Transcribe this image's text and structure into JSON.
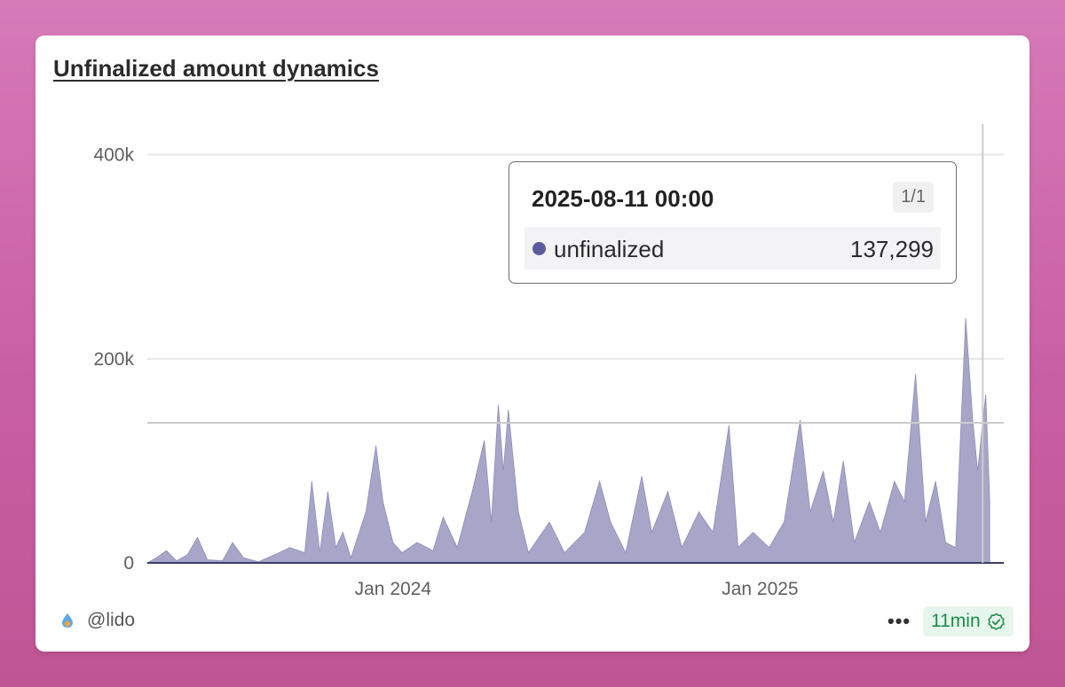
{
  "card": {
    "title": "Unfinalized amount dynamics",
    "author": "@lido",
    "freshness": "11min",
    "more_label": "•••"
  },
  "tooltip": {
    "date": "2025-08-11 00:00",
    "page": "1/1",
    "series_name": "unfinalized",
    "value": "137,299"
  },
  "colors": {
    "area_fill": "#a7a6c8",
    "area_line": "#8d8cbc",
    "series_dot": "#5b5a9e",
    "crosshair": "#cccccc",
    "badge_text": "#1f8a4c"
  },
  "chart_data": {
    "type": "area",
    "title": "Unfinalized amount dynamics",
    "series": [
      {
        "name": "unfinalized"
      }
    ],
    "x_range": [
      "2023-05-01",
      "2025-09-01"
    ],
    "ylim": [
      0,
      430000
    ],
    "y_ticks": [
      0,
      200000,
      400000
    ],
    "y_tick_labels": [
      "0",
      "200k",
      "400k"
    ],
    "x_ticks": [
      "2024-01-01",
      "2025-01-01"
    ],
    "x_tick_labels": [
      "Jan 2024",
      "Jan 2025"
    ],
    "grid": "horizontal",
    "crosshair": {
      "x": "2025-08-11",
      "y": 137299
    },
    "points": [
      [
        "2023-05-01",
        0
      ],
      [
        "2023-05-10",
        5000
      ],
      [
        "2023-05-20",
        12000
      ],
      [
        "2023-05-30",
        2000
      ],
      [
        "2023-06-10",
        8000
      ],
      [
        "2023-06-20",
        25000
      ],
      [
        "2023-06-30",
        3000
      ],
      [
        "2023-07-15",
        2000
      ],
      [
        "2023-07-25",
        20000
      ],
      [
        "2023-08-05",
        5000
      ],
      [
        "2023-08-20",
        1000
      ],
      [
        "2023-09-05",
        8000
      ],
      [
        "2023-09-20",
        15000
      ],
      [
        "2023-10-05",
        10000
      ],
      [
        "2023-10-12",
        80000
      ],
      [
        "2023-10-20",
        10000
      ],
      [
        "2023-10-28",
        70000
      ],
      [
        "2023-11-05",
        15000
      ],
      [
        "2023-11-12",
        30000
      ],
      [
        "2023-11-20",
        5000
      ],
      [
        "2023-12-05",
        50000
      ],
      [
        "2023-12-15",
        115000
      ],
      [
        "2023-12-22",
        60000
      ],
      [
        "2024-01-01",
        20000
      ],
      [
        "2024-01-10",
        10000
      ],
      [
        "2024-01-25",
        20000
      ],
      [
        "2024-02-10",
        12000
      ],
      [
        "2024-02-20",
        45000
      ],
      [
        "2024-03-05",
        15000
      ],
      [
        "2024-03-20",
        70000
      ],
      [
        "2024-04-01",
        120000
      ],
      [
        "2024-04-08",
        40000
      ],
      [
        "2024-04-15",
        155000
      ],
      [
        "2024-04-20",
        90000
      ],
      [
        "2024-04-25",
        150000
      ],
      [
        "2024-05-05",
        50000
      ],
      [
        "2024-05-15",
        10000
      ],
      [
        "2024-06-05",
        40000
      ],
      [
        "2024-06-20",
        10000
      ],
      [
        "2024-07-10",
        30000
      ],
      [
        "2024-07-25",
        80000
      ],
      [
        "2024-08-05",
        40000
      ],
      [
        "2024-08-20",
        10000
      ],
      [
        "2024-09-05",
        85000
      ],
      [
        "2024-09-15",
        30000
      ],
      [
        "2024-10-01",
        70000
      ],
      [
        "2024-10-15",
        15000
      ],
      [
        "2024-11-01",
        50000
      ],
      [
        "2024-11-15",
        30000
      ],
      [
        "2024-12-01",
        135000
      ],
      [
        "2024-12-10",
        15000
      ],
      [
        "2024-12-25",
        30000
      ],
      [
        "2025-01-10",
        15000
      ],
      [
        "2025-01-25",
        40000
      ],
      [
        "2025-02-10",
        140000
      ],
      [
        "2025-02-20",
        50000
      ],
      [
        "2025-03-05",
        90000
      ],
      [
        "2025-03-15",
        40000
      ],
      [
        "2025-03-25",
        100000
      ],
      [
        "2025-04-05",
        20000
      ],
      [
        "2025-04-20",
        60000
      ],
      [
        "2025-05-01",
        30000
      ],
      [
        "2025-05-15",
        80000
      ],
      [
        "2025-05-25",
        60000
      ],
      [
        "2025-06-05",
        185000
      ],
      [
        "2025-06-15",
        40000
      ],
      [
        "2025-06-25",
        80000
      ],
      [
        "2025-07-05",
        20000
      ],
      [
        "2025-07-15",
        15000
      ],
      [
        "2025-07-25",
        240000
      ],
      [
        "2025-08-01",
        140000
      ],
      [
        "2025-08-06",
        90000
      ],
      [
        "2025-08-11",
        137299
      ],
      [
        "2025-08-14",
        165000
      ],
      [
        "2025-08-18",
        60000
      ]
    ]
  }
}
